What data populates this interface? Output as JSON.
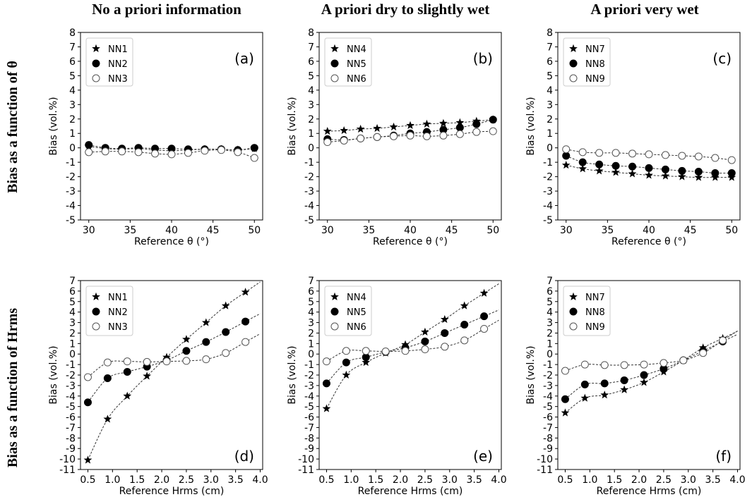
{
  "column_titles": [
    "No a priori information",
    "A priori dry to slightly wet",
    "A priori very wet"
  ],
  "row_titles": [
    "Bias as a function of θ",
    "Bias as a function of Hrms"
  ],
  "colors": {
    "line": "#333333",
    "marker": "#000000",
    "background": "#ffffff"
  },
  "chart_data": [
    {
      "panel": "(a)",
      "type": "line",
      "row": 0,
      "col": 0,
      "xlabel": "Reference θ (°)",
      "ylabel": "Bias (vol.%)",
      "xlim": [
        29,
        51
      ],
      "ylim": [
        -5,
        8
      ],
      "xticks": [
        30,
        35,
        40,
        45,
        50
      ],
      "yticks": [
        -5,
        -4,
        -3,
        -2,
        -1,
        0,
        1,
        2,
        3,
        4,
        5,
        6,
        7,
        8
      ],
      "legend": "top-left",
      "x": [
        30,
        32,
        34,
        36,
        38,
        40,
        42,
        44,
        46,
        48,
        50
      ],
      "series": [
        {
          "name": "NN1",
          "marker": "star",
          "values": [
            0.1,
            -0.05,
            -0.1,
            -0.05,
            -0.15,
            -0.2,
            -0.15,
            -0.1,
            -0.1,
            -0.15,
            -0.05
          ]
        },
        {
          "name": "NN2",
          "marker": "filled-circle",
          "values": [
            0.2,
            0.0,
            -0.05,
            0.0,
            -0.05,
            -0.05,
            -0.1,
            -0.1,
            -0.1,
            -0.15,
            0.0
          ]
        },
        {
          "name": "NN3",
          "marker": "open-circle",
          "values": [
            -0.3,
            -0.25,
            -0.25,
            -0.3,
            -0.4,
            -0.45,
            -0.35,
            -0.2,
            -0.15,
            -0.3,
            -0.7
          ]
        }
      ]
    },
    {
      "panel": "(b)",
      "type": "line",
      "row": 0,
      "col": 1,
      "xlabel": "Reference θ (°)",
      "ylabel": "Bias (vol.%)",
      "xlim": [
        29,
        51
      ],
      "ylim": [
        -5,
        8
      ],
      "xticks": [
        30,
        35,
        40,
        45,
        50
      ],
      "yticks": [
        -5,
        -4,
        -3,
        -2,
        -1,
        0,
        1,
        2,
        3,
        4,
        5,
        6,
        7,
        8
      ],
      "legend": "top-left",
      "x": [
        30,
        32,
        34,
        36,
        38,
        40,
        42,
        44,
        46,
        48,
        50
      ],
      "series": [
        {
          "name": "NN4",
          "marker": "star",
          "values": [
            1.15,
            1.2,
            1.3,
            1.35,
            1.45,
            1.55,
            1.65,
            1.7,
            1.75,
            1.85,
            1.95
          ]
        },
        {
          "name": "NN5",
          "marker": "filled-circle",
          "values": [
            0.6,
            0.55,
            0.65,
            0.75,
            0.85,
            1.0,
            1.1,
            1.25,
            1.4,
            1.65,
            1.95
          ]
        },
        {
          "name": "NN6",
          "marker": "open-circle",
          "values": [
            0.4,
            0.5,
            0.65,
            0.75,
            0.8,
            0.85,
            0.8,
            0.85,
            0.95,
            1.1,
            1.15
          ]
        }
      ]
    },
    {
      "panel": "(c)",
      "type": "line",
      "row": 0,
      "col": 2,
      "xlabel": "Reference θ (°)",
      "ylabel": "Bias (vol.%)",
      "xlim": [
        29,
        51
      ],
      "ylim": [
        -5,
        8
      ],
      "xticks": [
        30,
        35,
        40,
        45,
        50
      ],
      "yticks": [
        -5,
        -4,
        -3,
        -2,
        -1,
        0,
        1,
        2,
        3,
        4,
        5,
        6,
        7,
        8
      ],
      "legend": "top-left",
      "x": [
        30,
        32,
        34,
        36,
        38,
        40,
        42,
        44,
        46,
        48,
        50
      ],
      "series": [
        {
          "name": "NN7",
          "marker": "star",
          "values": [
            -1.2,
            -1.45,
            -1.6,
            -1.7,
            -1.8,
            -1.9,
            -1.95,
            -2.0,
            -2.05,
            -2.05,
            -2.05
          ]
        },
        {
          "name": "NN8",
          "marker": "filled-circle",
          "values": [
            -0.55,
            -1.0,
            -1.15,
            -1.25,
            -1.3,
            -1.4,
            -1.5,
            -1.6,
            -1.65,
            -1.75,
            -1.75
          ]
        },
        {
          "name": "NN9",
          "marker": "open-circle",
          "values": [
            -0.1,
            -0.3,
            -0.35,
            -0.35,
            -0.4,
            -0.45,
            -0.5,
            -0.55,
            -0.6,
            -0.7,
            -0.85
          ]
        }
      ]
    },
    {
      "panel": "(d)",
      "type": "line",
      "row": 1,
      "col": 0,
      "xlabel": "Reference Hrms (cm)",
      "ylabel": "Bias (vol.%)",
      "xlim": [
        0.35,
        4.05
      ],
      "ylim": [
        -11,
        7
      ],
      "xticks": [
        0.5,
        1.0,
        1.5,
        2.0,
        2.5,
        3.0,
        3.5,
        4.0
      ],
      "yticks": [
        -11,
        -10,
        -9,
        -8,
        -7,
        -6,
        -5,
        -4,
        -3,
        -2,
        -1,
        0,
        1,
        2,
        3,
        4,
        5,
        6,
        7
      ],
      "legend": "top-left",
      "x": [
        0.5,
        0.9,
        1.3,
        1.7,
        2.1,
        2.5,
        2.9,
        3.3,
        3.7
      ],
      "series": [
        {
          "name": "NN1",
          "marker": "star",
          "values": [
            -10.1,
            -6.2,
            -4.0,
            -2.1,
            -0.3,
            1.4,
            3.0,
            4.6,
            5.9
          ]
        },
        {
          "name": "NN2",
          "marker": "filled-circle",
          "values": [
            -4.6,
            -2.3,
            -1.7,
            -1.2,
            -0.6,
            0.3,
            1.15,
            2.1,
            3.1
          ]
        },
        {
          "name": "NN3",
          "marker": "open-circle",
          "values": [
            -2.2,
            -0.8,
            -0.7,
            -0.75,
            -0.7,
            -0.65,
            -0.5,
            0.1,
            1.15
          ]
        }
      ]
    },
    {
      "panel": "(e)",
      "type": "line",
      "row": 1,
      "col": 1,
      "xlabel": "Reference Hrms (cm)",
      "ylabel": "Bias (vol.%)",
      "xlim": [
        0.35,
        4.05
      ],
      "ylim": [
        -11,
        7
      ],
      "xticks": [
        0.5,
        1.0,
        1.5,
        2.0,
        2.5,
        3.0,
        3.5,
        4.0
      ],
      "yticks": [
        -11,
        -10,
        -9,
        -8,
        -7,
        -6,
        -5,
        -4,
        -3,
        -2,
        -1,
        0,
        1,
        2,
        3,
        4,
        5,
        6,
        7
      ],
      "legend": "top-left",
      "x": [
        0.5,
        0.9,
        1.3,
        1.7,
        2.1,
        2.5,
        2.9,
        3.3,
        3.7
      ],
      "series": [
        {
          "name": "NN4",
          "marker": "star",
          "values": [
            -5.2,
            -2.0,
            -0.8,
            0.1,
            0.9,
            2.1,
            3.3,
            4.6,
            5.8
          ]
        },
        {
          "name": "NN5",
          "marker": "filled-circle",
          "values": [
            -2.8,
            -0.8,
            -0.3,
            0.2,
            0.6,
            1.2,
            2.0,
            2.8,
            3.6
          ]
        },
        {
          "name": "NN6",
          "marker": "open-circle",
          "values": [
            -0.7,
            0.3,
            0.3,
            0.25,
            0.3,
            0.45,
            0.7,
            1.3,
            2.4
          ]
        }
      ]
    },
    {
      "panel": "(f)",
      "type": "line",
      "row": 1,
      "col": 2,
      "xlabel": "Reference Hrms (cm)",
      "ylabel": "Bias (vol.%)",
      "xlim": [
        0.35,
        4.05
      ],
      "ylim": [
        -11,
        7
      ],
      "xticks": [
        0.5,
        1.0,
        1.5,
        2.0,
        2.5,
        3.0,
        3.5,
        4.0
      ],
      "yticks": [
        -11,
        -10,
        -9,
        -8,
        -7,
        -6,
        -5,
        -4,
        -3,
        -2,
        -1,
        0,
        1,
        2,
        3,
        4,
        5,
        6,
        7
      ],
      "legend": "top-left",
      "x": [
        0.5,
        0.9,
        1.3,
        1.7,
        2.1,
        2.5,
        2.9,
        3.3,
        3.7
      ],
      "series": [
        {
          "name": "NN7",
          "marker": "star",
          "values": [
            -5.6,
            -4.2,
            -3.9,
            -3.4,
            -2.7,
            -1.7,
            -0.6,
            0.6,
            1.5
          ]
        },
        {
          "name": "NN8",
          "marker": "filled-circle",
          "values": [
            -4.3,
            -2.9,
            -2.8,
            -2.5,
            -2.0,
            -1.4,
            -0.6,
            0.3,
            1.2
          ]
        },
        {
          "name": "NN9",
          "marker": "open-circle",
          "values": [
            -1.6,
            -1.0,
            -1.05,
            -1.05,
            -1.0,
            -0.85,
            -0.6,
            0.1,
            1.3
          ]
        }
      ]
    }
  ]
}
